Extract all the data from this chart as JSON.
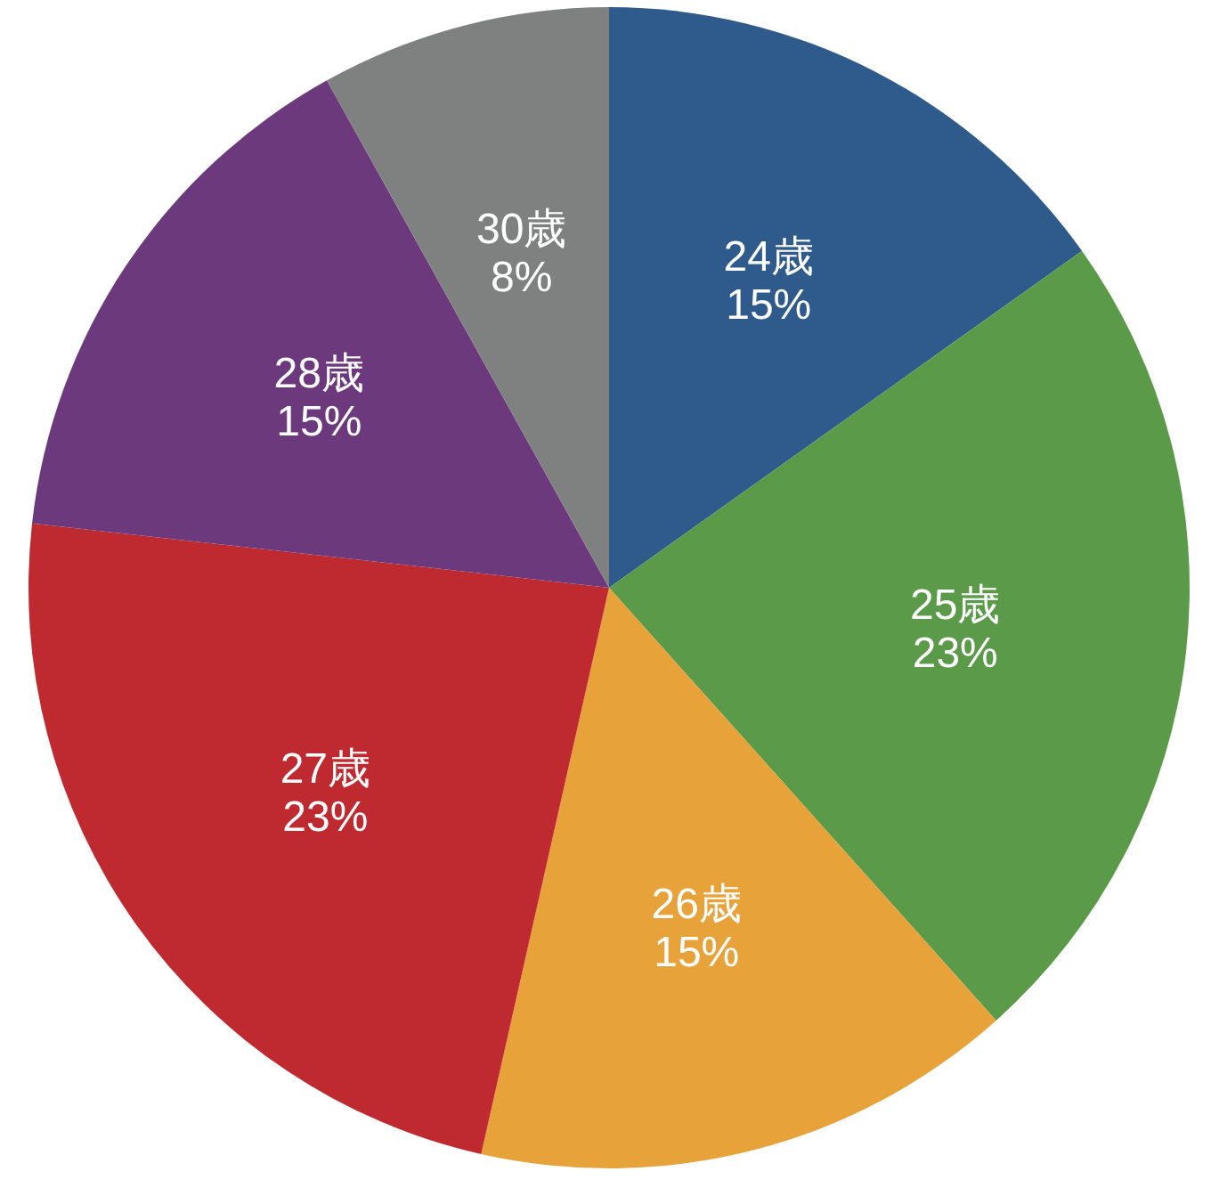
{
  "chart_data": {
    "type": "pie",
    "categories": [
      "24歳",
      "25歳",
      "26歳",
      "27歳",
      "28歳",
      "30歳"
    ],
    "values": [
      15,
      23,
      15,
      23,
      15,
      8
    ],
    "value_labels": [
      "15%",
      "23%",
      "15%",
      "23%",
      "15%",
      "8%"
    ],
    "colors": [
      "#2e5a8c",
      "#5b9a48",
      "#e8a23a",
      "#bf2a30",
      "#6c3a7c",
      "#7f8180"
    ]
  }
}
